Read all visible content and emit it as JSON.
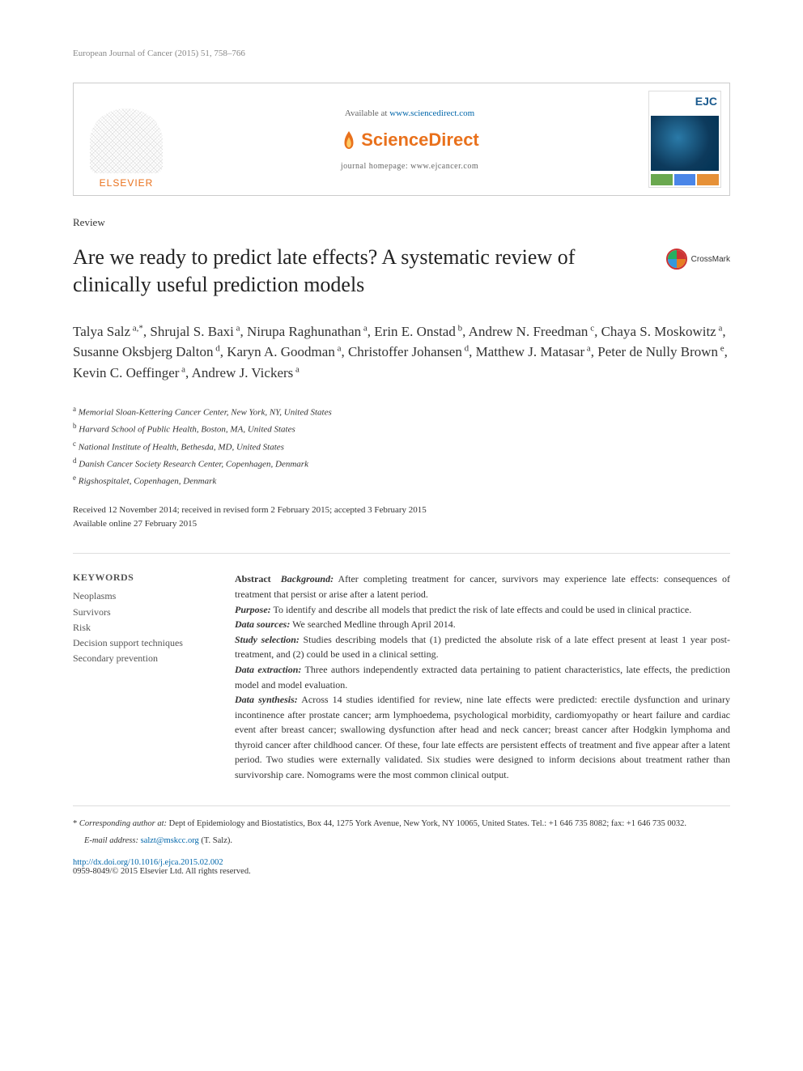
{
  "runningHead": "European Journal of Cancer (2015) 51, 758–766",
  "headerBox": {
    "publisherLabel": "ELSEVIER",
    "availablePrefix": "Available at ",
    "availableLink": "www.sciencedirect.com",
    "scienceDirectText": "ScienceDirect",
    "journalHomePrefix": "journal homepage: ",
    "journalHomeLink": "www.ejcancer.com",
    "coverAcronym": "EJC"
  },
  "articleType": "Review",
  "title": "Are we ready to predict late effects? A systematic review of clinically useful prediction models",
  "crossmark": "CrossMark",
  "authors": [
    {
      "name": "Talya Salz",
      "marks": "a,*"
    },
    {
      "name": "Shrujal S. Baxi",
      "marks": "a"
    },
    {
      "name": "Nirupa Raghunathan",
      "marks": "a"
    },
    {
      "name": "Erin E. Onstad",
      "marks": "b"
    },
    {
      "name": "Andrew N. Freedman",
      "marks": "c"
    },
    {
      "name": "Chaya S. Moskowitz",
      "marks": "a"
    },
    {
      "name": "Susanne Oksbjerg Dalton",
      "marks": "d"
    },
    {
      "name": "Karyn A. Goodman",
      "marks": "a"
    },
    {
      "name": "Christoffer Johansen",
      "marks": "d"
    },
    {
      "name": "Matthew J. Matasar",
      "marks": "a"
    },
    {
      "name": "Peter de Nully Brown",
      "marks": "e"
    },
    {
      "name": "Kevin C. Oeffinger",
      "marks": "a"
    },
    {
      "name": "Andrew J. Vickers",
      "marks": "a"
    }
  ],
  "affiliations": [
    {
      "mark": "a",
      "text": "Memorial Sloan-Kettering Cancer Center, New York, NY, United States"
    },
    {
      "mark": "b",
      "text": "Harvard School of Public Health, Boston, MA, United States"
    },
    {
      "mark": "c",
      "text": "National Institute of Health, Bethesda, MD, United States"
    },
    {
      "mark": "d",
      "text": "Danish Cancer Society Research Center, Copenhagen, Denmark"
    },
    {
      "mark": "e",
      "text": "Rigshospitalet, Copenhagen, Denmark"
    }
  ],
  "dates": {
    "line1": "Received 12 November 2014; received in revised form 2 February 2015; accepted 3 February 2015",
    "line2": "Available online 27 February 2015"
  },
  "keywords": {
    "header": "KEYWORDS",
    "items": [
      "Neoplasms",
      "Survivors",
      "Risk",
      "Decision support techniques",
      "Secondary prevention"
    ]
  },
  "abstract": {
    "leadLabel": "Abstract",
    "sections": [
      {
        "label": "Background:",
        "text": "After completing treatment for cancer, survivors may experience late effects: consequences of treatment that persist or arise after a latent period."
      },
      {
        "label": "Purpose:",
        "text": "To identify and describe all models that predict the risk of late effects and could be used in clinical practice."
      },
      {
        "label": "Data sources:",
        "text": "We searched Medline through April 2014."
      },
      {
        "label": "Study selection:",
        "text": "Studies describing models that (1) predicted the absolute risk of a late effect present at least 1 year post-treatment, and (2) could be used in a clinical setting."
      },
      {
        "label": "Data extraction:",
        "text": "Three authors independently extracted data pertaining to patient characteristics, late effects, the prediction model and model evaluation."
      },
      {
        "label": "Data synthesis:",
        "text": "Across 14 studies identified for review, nine late effects were predicted: erectile dysfunction and urinary incontinence after prostate cancer; arm lymphoedema, psychological morbidity, cardiomyopathy or heart failure and cardiac event after breast cancer; swallowing dysfunction after head and neck cancer; breast cancer after Hodgkin lymphoma and thyroid cancer after childhood cancer. Of these, four late effects are persistent effects of treatment and five appear after a latent period. Two studies were externally validated. Six studies were designed to inform decisions about treatment rather than survivorship care. Nomograms were the most common clinical output."
      }
    ]
  },
  "footer": {
    "correspondingLabel": "Corresponding author at:",
    "correspondingText": "Dept of Epidemiology and Biostatistics, Box 44, 1275 York Avenue, New York, NY 10065, United States. Tel.: +1 646 735 8082; fax: +1 646 735 0032.",
    "emailLabel": "E-mail address:",
    "email": "salzt@mskcc.org",
    "emailSuffix": "(T. Salz).",
    "doi": "http://dx.doi.org/10.1016/j.ejca.2015.02.002",
    "copyright": "0959-8049/© 2015 Elsevier Ltd. All rights reserved."
  },
  "colors": {
    "link": "#0066aa",
    "orange": "#e9711c",
    "textMuted": "#888888",
    "border": "#cccccc"
  }
}
